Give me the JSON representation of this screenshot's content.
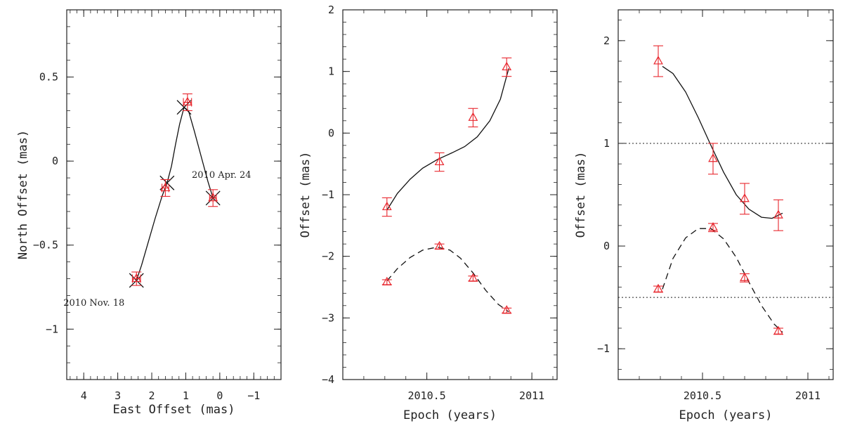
{
  "colors": {
    "data": "#e8262d",
    "model": "#111111",
    "axis": "#222222"
  },
  "chart_data": [
    {
      "type": "scatter",
      "xlabel": "East Offset (mas)",
      "ylabel": "North Offset (mas)",
      "xlim": [
        4.5,
        -1.8
      ],
      "ylim": [
        -1.3,
        0.9
      ],
      "xticks": [
        4,
        3,
        2,
        1,
        0,
        -1
      ],
      "yticks": [
        0.5,
        0,
        -0.5,
        -1
      ],
      "xtick_labels": [
        "4",
        "3",
        "2",
        "1",
        "0",
        "−1"
      ],
      "ytick_labels": [
        "0.5",
        "0",
        "−0.5",
        "−1"
      ],
      "measurements": [
        {
          "east": 2.45,
          "north": -0.7,
          "east_err": 0.12,
          "north_err": 0.04
        },
        {
          "east": 1.6,
          "north": -0.16,
          "east_err": 0.1,
          "north_err": 0.05
        },
        {
          "east": 0.95,
          "north": 0.35,
          "east_err": 0.12,
          "north_err": 0.05
        },
        {
          "east": 0.2,
          "north": -0.22,
          "east_err": 0.1,
          "north_err": 0.05
        }
      ],
      "model_positions": [
        {
          "east": 2.45,
          "north": -0.71
        },
        {
          "east": 1.55,
          "north": -0.13
        },
        {
          "east": 1.05,
          "north": 0.32
        },
        {
          "east": 0.2,
          "north": -0.22
        }
      ],
      "model_curve": [
        [
          2.45,
          -0.71
        ],
        [
          2.3,
          -0.62
        ],
        [
          2.1,
          -0.48
        ],
        [
          1.9,
          -0.34
        ],
        [
          1.7,
          -0.21
        ],
        [
          1.55,
          -0.13
        ],
        [
          1.42,
          -0.03
        ],
        [
          1.3,
          0.1
        ],
        [
          1.18,
          0.22
        ],
        [
          1.05,
          0.32
        ],
        [
          0.92,
          0.3
        ],
        [
          0.75,
          0.18
        ],
        [
          0.55,
          0.03
        ],
        [
          0.35,
          -0.12
        ],
        [
          0.2,
          -0.22
        ]
      ],
      "annotations": [
        {
          "text": "2010 Apr. 24",
          "x": -0.05,
          "y": -0.1
        },
        {
          "text": "2010 Nov. 18",
          "x": 3.7,
          "y": -0.86
        }
      ]
    },
    {
      "type": "scatter",
      "xlabel": "Epoch (years)",
      "ylabel": "Offset (mas)",
      "xlim": [
        2010.1,
        2011.12
      ],
      "ylim": [
        -4,
        2
      ],
      "xticks": [
        2010.5,
        2011
      ],
      "yticks": [
        2,
        1,
        0,
        -1,
        -2,
        -3,
        -4
      ],
      "xtick_labels": [
        "2010.5",
        "2011"
      ],
      "ytick_labels": [
        "2",
        "1",
        "0",
        "−1",
        "−2",
        "−3",
        "−4"
      ],
      "series": [
        {
          "line": "solid",
          "points": [
            {
              "x": 2010.31,
              "y": -1.2,
              "err": 0.15
            },
            {
              "x": 2010.56,
              "y": -0.47,
              "err": 0.15
            },
            {
              "x": 2010.72,
              "y": 0.25,
              "err": 0.15
            },
            {
              "x": 2010.88,
              "y": 1.07,
              "err": 0.15
            }
          ],
          "model": [
            [
              2010.31,
              -1.25
            ],
            [
              2010.36,
              -0.98
            ],
            [
              2010.42,
              -0.75
            ],
            [
              2010.48,
              -0.57
            ],
            [
              2010.55,
              -0.43
            ],
            [
              2010.62,
              -0.32
            ],
            [
              2010.68,
              -0.22
            ],
            [
              2010.74,
              -0.06
            ],
            [
              2010.8,
              0.2
            ],
            [
              2010.85,
              0.55
            ],
            [
              2010.89,
              1.05
            ]
          ]
        },
        {
          "line": "dashed",
          "points": [
            {
              "x": 2010.31,
              "y": -2.42,
              "err": 0.04
            },
            {
              "x": 2010.56,
              "y": -1.84,
              "err": 0.04
            },
            {
              "x": 2010.72,
              "y": -2.36,
              "err": 0.04
            },
            {
              "x": 2010.88,
              "y": -2.88,
              "err": 0.04
            }
          ],
          "model": [
            [
              2010.31,
              -2.4
            ],
            [
              2010.36,
              -2.2
            ],
            [
              2010.42,
              -2.02
            ],
            [
              2010.48,
              -1.9
            ],
            [
              2010.55,
              -1.85
            ],
            [
              2010.61,
              -1.9
            ],
            [
              2010.66,
              -2.03
            ],
            [
              2010.72,
              -2.27
            ],
            [
              2010.78,
              -2.55
            ],
            [
              2010.84,
              -2.78
            ],
            [
              2010.89,
              -2.9
            ]
          ]
        }
      ]
    },
    {
      "type": "scatter",
      "xlabel": "Epoch (years)",
      "ylabel": "Offset (mas)",
      "xlim": [
        2010.1,
        2011.12
      ],
      "ylim": [
        -1.3,
        2.3
      ],
      "xticks": [
        2010.5,
        2011
      ],
      "yticks": [
        2,
        1,
        0,
        -1
      ],
      "xtick_labels": [
        "2010.5",
        "2011"
      ],
      "ytick_labels": [
        "2",
        "1",
        "0",
        "−1"
      ],
      "reference_lines": [
        1.0,
        -0.5
      ],
      "series": [
        {
          "line": "solid",
          "points": [
            {
              "x": 2010.29,
              "y": 1.8,
              "err": 0.15
            },
            {
              "x": 2010.55,
              "y": 0.85,
              "err": 0.15
            },
            {
              "x": 2010.7,
              "y": 0.46,
              "err": 0.15
            },
            {
              "x": 2010.86,
              "y": 0.3,
              "err": 0.15
            }
          ],
          "model": [
            [
              2010.31,
              1.75
            ],
            [
              2010.36,
              1.68
            ],
            [
              2010.42,
              1.5
            ],
            [
              2010.48,
              1.25
            ],
            [
              2010.54,
              0.98
            ],
            [
              2010.6,
              0.72
            ],
            [
              2010.66,
              0.5
            ],
            [
              2010.72,
              0.36
            ],
            [
              2010.78,
              0.28
            ],
            [
              2010.83,
              0.27
            ],
            [
              2010.88,
              0.32
            ]
          ]
        },
        {
          "line": "dashed",
          "points": [
            {
              "x": 2010.29,
              "y": -0.42,
              "err": 0.03
            },
            {
              "x": 2010.55,
              "y": 0.18,
              "err": 0.04
            },
            {
              "x": 2010.7,
              "y": -0.31,
              "err": 0.04
            },
            {
              "x": 2010.86,
              "y": -0.83,
              "err": 0.03
            }
          ],
          "model": [
            [
              2010.31,
              -0.42
            ],
            [
              2010.36,
              -0.12
            ],
            [
              2010.42,
              0.08
            ],
            [
              2010.48,
              0.17
            ],
            [
              2010.54,
              0.17
            ],
            [
              2010.6,
              0.07
            ],
            [
              2010.66,
              -0.11
            ],
            [
              2010.72,
              -0.35
            ],
            [
              2010.78,
              -0.58
            ],
            [
              2010.84,
              -0.76
            ],
            [
              2010.88,
              -0.84
            ]
          ]
        }
      ]
    }
  ]
}
